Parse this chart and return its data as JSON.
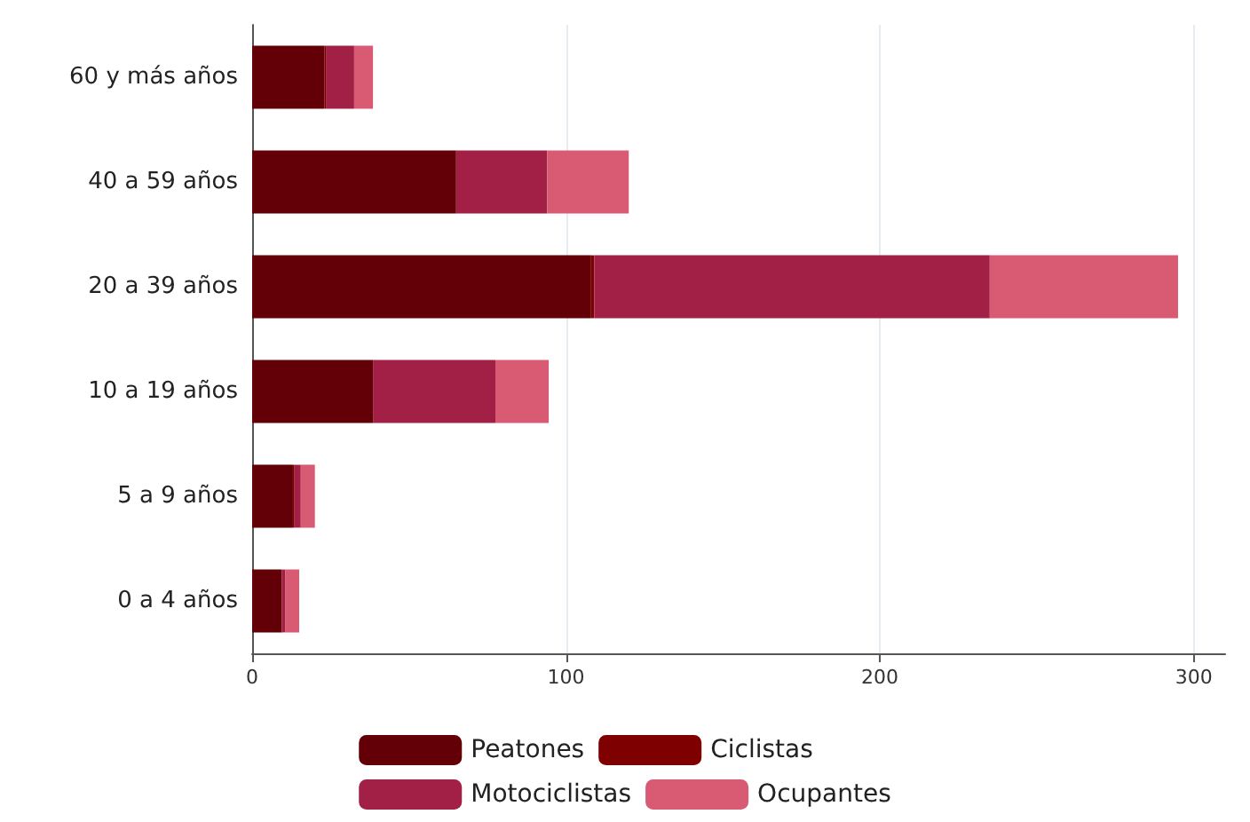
{
  "chart_data": {
    "type": "bar",
    "orientation": "horizontal",
    "stacked": true,
    "categories": [
      "60 y más años",
      "40 a 59 años",
      "20 a 39 años",
      "10 a 19 años",
      "5 a 9 años",
      "0 a 4 años"
    ],
    "series": [
      {
        "name": "Peatones",
        "color": "#630007",
        "values": [
          23,
          65,
          108,
          38.5,
          13,
          9.5
        ]
      },
      {
        "name": "Ciclistas",
        "color": "#7f0000",
        "values": [
          0.5,
          0,
          1,
          0,
          0.5,
          0
        ]
      },
      {
        "name": "Motociclistas",
        "color": "#a22045",
        "values": [
          9,
          29,
          126,
          39,
          2,
          1
        ]
      },
      {
        "name": "Ocupantes",
        "color": "#d95b73",
        "values": [
          6,
          26,
          60,
          17,
          4.5,
          4.5
        ]
      }
    ],
    "xlim": [
      0,
      310
    ],
    "xticks": [
      0,
      100,
      200,
      300
    ],
    "grid": "x",
    "legend": "bottom"
  }
}
